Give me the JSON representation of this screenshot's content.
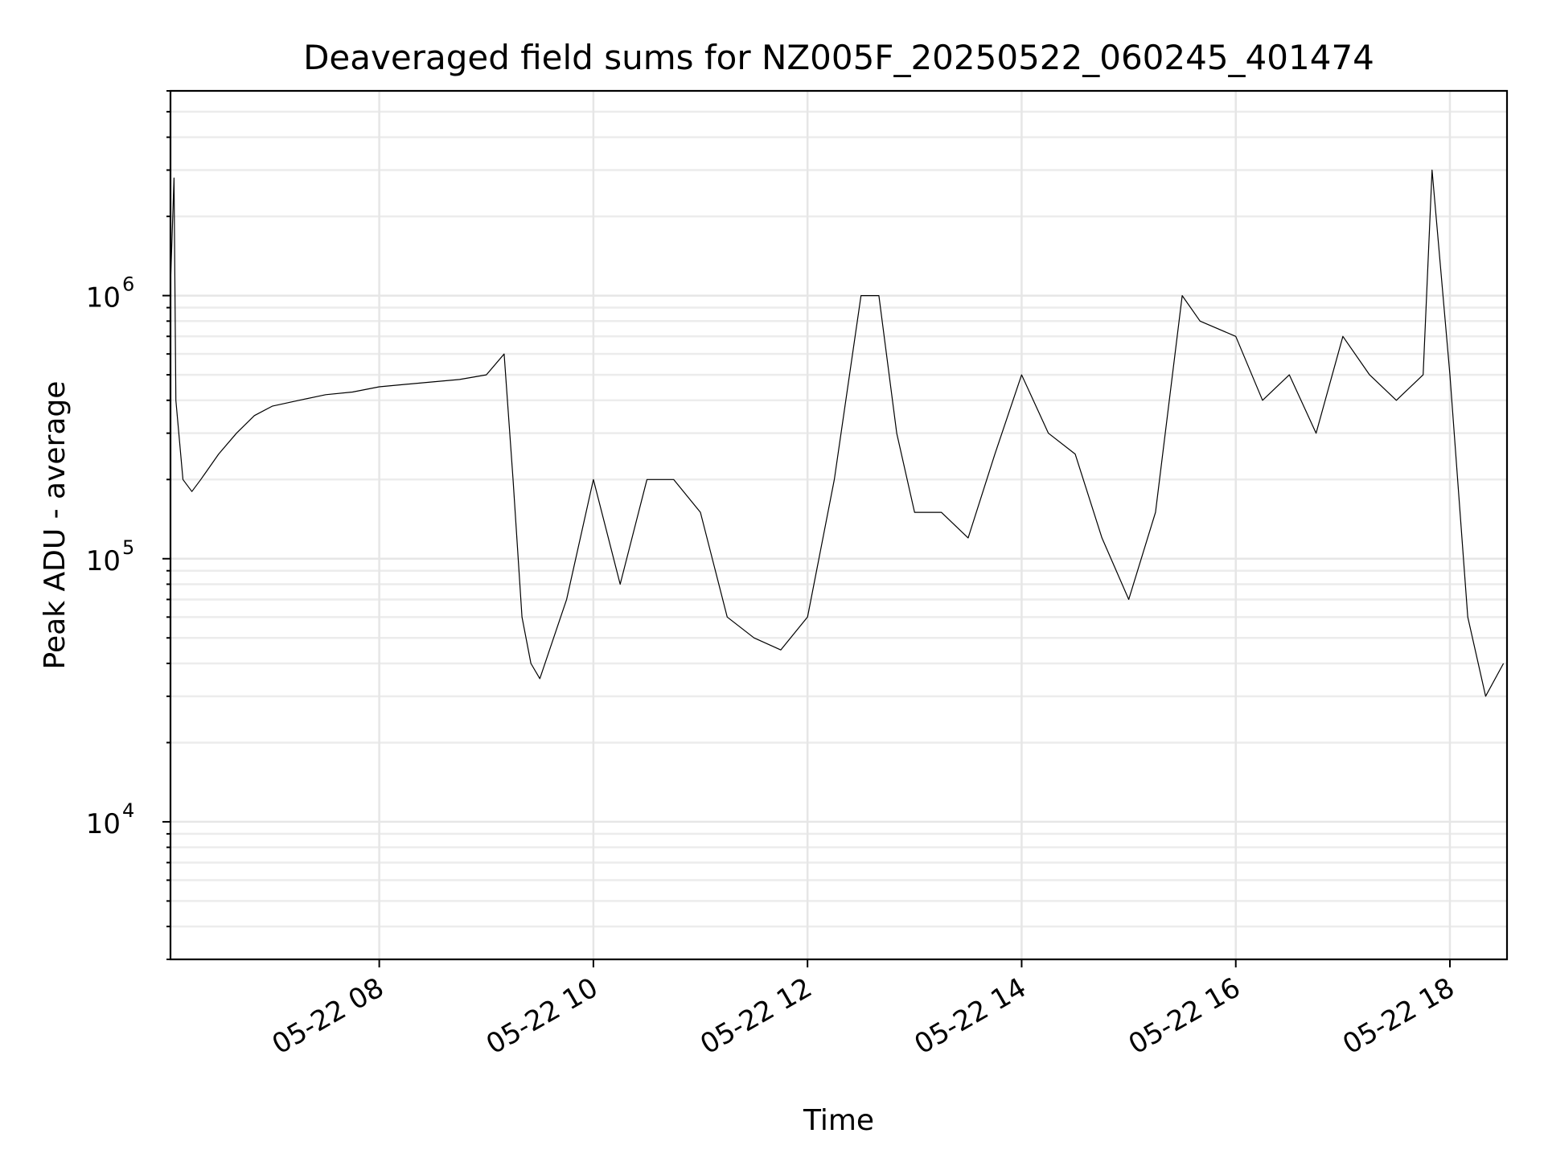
{
  "chart_data": {
    "type": "line",
    "title": "Deaveraged field sums for NZ005F_20250522_060245_401474",
    "xlabel": "Time",
    "ylabel": "Peak ADU - average",
    "yscale": "log",
    "ylim": [
      3000,
      6000000
    ],
    "xlim": [
      "2025-05-22 06:03",
      "2025-05-22 18:32"
    ],
    "grid": "on (major and minor)",
    "legend": "none",
    "line_color": "#000000",
    "x_ticks": [
      {
        "label": "05-22 08",
        "value": "2025-05-22 08:00"
      },
      {
        "label": "05-22 10",
        "value": "2025-05-22 10:00"
      },
      {
        "label": "05-22 12",
        "value": "2025-05-22 12:00"
      },
      {
        "label": "05-22 14",
        "value": "2025-05-22 14:00"
      },
      {
        "label": "05-22 16",
        "value": "2025-05-22 16:00"
      },
      {
        "label": "05-22 18",
        "value": "2025-05-22 18:00"
      }
    ],
    "y_ticks": [
      {
        "base": "10",
        "exp": "4",
        "value": 10000
      },
      {
        "base": "10",
        "exp": "5",
        "value": 100000
      },
      {
        "base": "10",
        "exp": "6",
        "value": 1000000
      }
    ],
    "series": [
      {
        "x": [
          "2025-05-22 06:03",
          "2025-05-22 06:05",
          "2025-05-22 06:06",
          "2025-05-22 06:10",
          "2025-05-22 06:15",
          "2025-05-22 06:20",
          "2025-05-22 06:30",
          "2025-05-22 06:40",
          "2025-05-22 06:50",
          "2025-05-22 07:00",
          "2025-05-22 07:15",
          "2025-05-22 07:30",
          "2025-05-22 07:45",
          "2025-05-22 08:00",
          "2025-05-22 08:15",
          "2025-05-22 08:30",
          "2025-05-22 08:45",
          "2025-05-22 09:00",
          "2025-05-22 09:10",
          "2025-05-22 09:15",
          "2025-05-22 09:20",
          "2025-05-22 09:25",
          "2025-05-22 09:30",
          "2025-05-22 09:45",
          "2025-05-22 10:00",
          "2025-05-22 10:15",
          "2025-05-22 10:30",
          "2025-05-22 10:45",
          "2025-05-22 11:00",
          "2025-05-22 11:15",
          "2025-05-22 11:30",
          "2025-05-22 11:45",
          "2025-05-22 12:00",
          "2025-05-22 12:15",
          "2025-05-22 12:30",
          "2025-05-22 12:40",
          "2025-05-22 12:50",
          "2025-05-22 13:00",
          "2025-05-22 13:15",
          "2025-05-22 13:30",
          "2025-05-22 13:45",
          "2025-05-22 14:00",
          "2025-05-22 14:15",
          "2025-05-22 14:30",
          "2025-05-22 14:45",
          "2025-05-22 15:00",
          "2025-05-22 15:15",
          "2025-05-22 15:30",
          "2025-05-22 15:40",
          "2025-05-22 16:00",
          "2025-05-22 16:15",
          "2025-05-22 16:30",
          "2025-05-22 16:45",
          "2025-05-22 17:00",
          "2025-05-22 17:15",
          "2025-05-22 17:30",
          "2025-05-22 17:45",
          "2025-05-22 17:50",
          "2025-05-22 18:00",
          "2025-05-22 18:10",
          "2025-05-22 18:20",
          "2025-05-22 18:30"
        ],
        "y": [
          1100000,
          2800000,
          400000,
          200000,
          180000,
          200000,
          250000,
          300000,
          350000,
          380000,
          400000,
          420000,
          430000,
          450000,
          460000,
          470000,
          480000,
          500000,
          600000,
          200000,
          60000,
          40000,
          35000,
          70000,
          200000,
          80000,
          200000,
          200000,
          150000,
          60000,
          50000,
          45000,
          60000,
          200000,
          1000000,
          1000000,
          300000,
          150000,
          150000,
          120000,
          250000,
          500000,
          300000,
          250000,
          120000,
          70000,
          150000,
          1000000,
          800000,
          700000,
          400000,
          500000,
          300000,
          700000,
          500000,
          400000,
          500000,
          3000000,
          500000,
          60000,
          30000,
          40000
        ]
      }
    ]
  }
}
